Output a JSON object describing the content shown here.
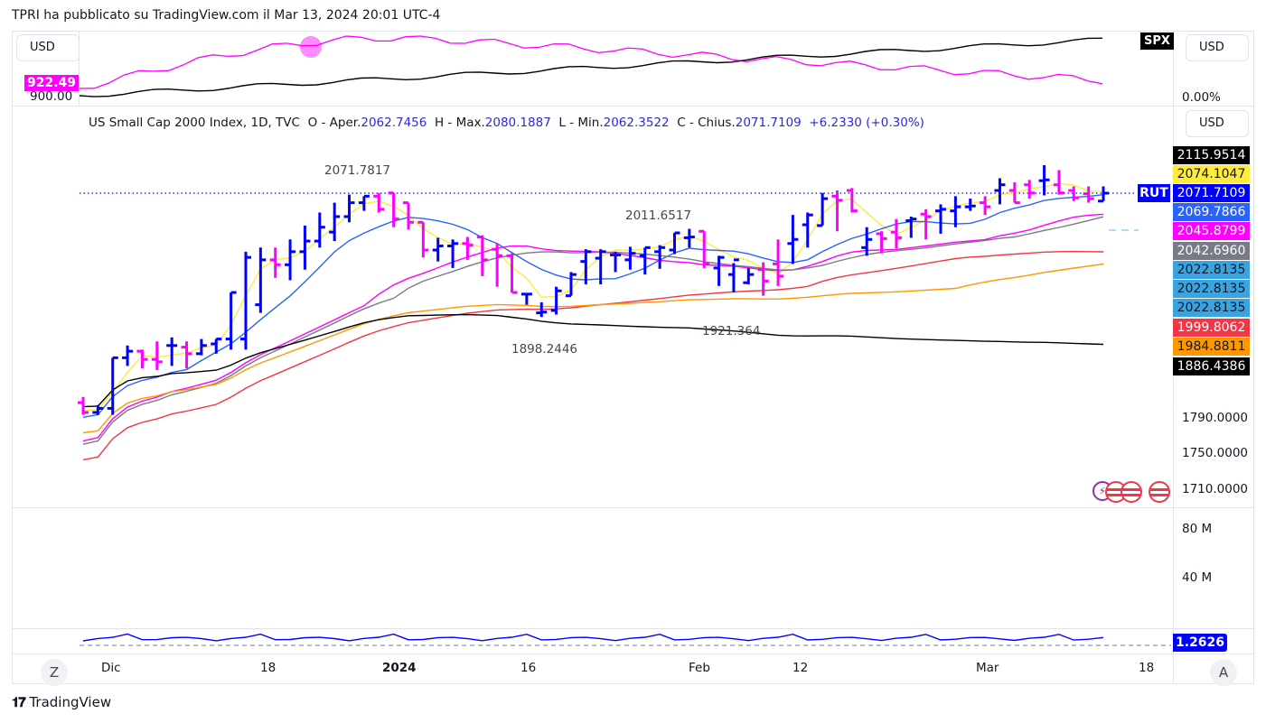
{
  "header": {
    "publish_line": "TPRI ha pubblicato su TradingView.com il Mar 13, 2024 20:01 UTC-4"
  },
  "top_pane": {
    "currency_left": "USD",
    "currency_right": "USD",
    "left_tag_value": "922.49",
    "left_axis_value": "900.00",
    "right_axis_value": "0.00%",
    "symbol_tag": "SPX"
  },
  "main_pane": {
    "currency": "USD",
    "legend": {
      "symbol": "US Small Cap 2000 Index, 1D, TVC",
      "open_label": "O - Aper.",
      "open": "2062.7456",
      "high_label": "H - Max.",
      "high": "2080.1887",
      "low_label": "L - Min.",
      "low": "2062.3522",
      "close_label": "C - Chius.",
      "close": "2071.7109",
      "change": "+6.2330 (+0.30%)"
    },
    "symbol_tag": "RUT",
    "price_tags": [
      {
        "value": "2115.9514",
        "bg": "#000000",
        "fg": "#ffffff"
      },
      {
        "value": "2074.1047",
        "bg": "#ffeb3b",
        "fg": "#131722"
      },
      {
        "value": "2071.7109",
        "bg": "#0000ff",
        "fg": "#ffffff"
      },
      {
        "value": "2069.7866",
        "bg": "#2962ff",
        "fg": "#ffffff"
      },
      {
        "value": "2045.8799",
        "bg": "#ff00ff",
        "fg": "#ffffff"
      },
      {
        "value": "2042.6960",
        "bg": "#787b86",
        "fg": "#ffffff"
      },
      {
        "value": "2022.8135",
        "bg": "#3aa4e0",
        "fg": "#131722"
      },
      {
        "value": "2022.8135",
        "bg": "#3aa4e0",
        "fg": "#131722"
      },
      {
        "value": "2022.8135",
        "bg": "#3aa4e0",
        "fg": "#131722"
      },
      {
        "value": "1999.8062",
        "bg": "#f23645",
        "fg": "#ffffff"
      },
      {
        "value": "1984.8811",
        "bg": "#ff9800",
        "fg": "#131722"
      },
      {
        "value": "1886.4386",
        "bg": "#000000",
        "fg": "#ffffff"
      }
    ],
    "axis_labels": [
      "1790.0000",
      "1750.0000",
      "1710.0000"
    ],
    "annotations": {
      "high_1": "2071.7817",
      "high_2": "2011.6517",
      "low_1": "1898.2446",
      "low_2": "1921.364"
    }
  },
  "volume_pane": {
    "axis_labels": [
      "80 M",
      "40 M"
    ]
  },
  "indicator_pane": {
    "value_tag": "1.2626"
  },
  "time_axis": {
    "labels": [
      "Dic",
      "18",
      "2024",
      "16",
      "Feb",
      "12",
      "Mar",
      "18"
    ],
    "left_button": "Z",
    "right_button": "A"
  },
  "footer": {
    "brand": "TradingView"
  },
  "colors": {
    "up_bar": "#0000ff",
    "down_bar": "#ff00ff",
    "grid": "#e0e3eb"
  },
  "chart_data": [
    {
      "type": "ohlc",
      "title": "US Small Cap 2000 Index, 1D, TVC",
      "ylim": [
        1690,
        2130
      ],
      "x": [
        "Dec 1",
        "Dec 4",
        "Dec 5",
        "Dec 6",
        "Dec 7",
        "Dec 8",
        "Dec 11",
        "Dec 12",
        "Dec 13",
        "Dec 14",
        "Dec 15",
        "Dec 18",
        "Dec 19",
        "Dec 20",
        "Dec 21",
        "Dec 22",
        "Dec 26",
        "Dec 27",
        "Dec 28",
        "Dec 29",
        "Jan 2",
        "Jan 3",
        "Jan 4",
        "Jan 5",
        "Jan 8",
        "Jan 9",
        "Jan 10",
        "Jan 11",
        "Jan 12",
        "Jan 16",
        "Jan 17",
        "Jan 18",
        "Jan 19",
        "Jan 22",
        "Jan 23",
        "Jan 24",
        "Jan 25",
        "Jan 26",
        "Jan 29",
        "Jan 30",
        "Jan 31",
        "Feb 1",
        "Feb 2",
        "Feb 5",
        "Feb 6",
        "Feb 7",
        "Feb 8",
        "Feb 9",
        "Feb 12",
        "Feb 13",
        "Feb 14",
        "Feb 15",
        "Feb 16",
        "Feb 20",
        "Feb 21",
        "Feb 22",
        "Feb 23",
        "Feb 26",
        "Feb 27",
        "Feb 28",
        "Feb 29",
        "Mar 1",
        "Mar 4",
        "Mar 5",
        "Mar 6",
        "Mar 7",
        "Mar 8",
        "Mar 11",
        "Mar 12",
        "Mar 13"
      ],
      "open": [
        1815,
        1803,
        1808,
        1870,
        1878,
        1868,
        1885,
        1883,
        1875,
        1887,
        1893,
        1893,
        1935,
        1990,
        1984,
        2000,
        2013,
        2024,
        2043,
        2060,
        2068,
        2072,
        2060,
        2036,
        2002,
        2007,
        2010,
        2018,
        2003,
        1995,
        1948,
        1925,
        1928,
        1946,
        1988,
        1992,
        1996,
        1990,
        1995,
        2000,
        2002,
        2017,
        2025,
        1980,
        1972,
        1962,
        1978,
        1985,
        2010,
        2033,
        2032,
        2068,
        2075,
        2005,
        2022,
        2024,
        2038,
        2046,
        2050,
        2050,
        2055,
        2060,
        2075,
        2075,
        2082,
        2087,
        2082,
        2075,
        2071,
        2062
      ],
      "high": [
        1822,
        1812,
        1870,
        1885,
        1880,
        1890,
        1895,
        1890,
        1893,
        1893,
        1950,
        2000,
        2005,
        2005,
        2015,
        2032,
        2048,
        2060,
        2070,
        2068,
        2072,
        2072,
        2060,
        2036,
        2017,
        2015,
        2018,
        2020,
        2010,
        1998,
        1948,
        1938,
        1957,
        1975,
        2003,
        2003,
        2000,
        2006,
        2005,
        2008,
        2023,
        2028,
        2025,
        1995,
        1986,
        1980,
        1987,
        2015,
        2045,
        2048,
        2072,
        2075,
        2078,
        2030,
        2025,
        2040,
        2043,
        2052,
        2058,
        2068,
        2065,
        2068,
        2090,
        2085,
        2088,
        2106,
        2100,
        2080,
        2080,
        2080
      ],
      "low": [
        1800,
        1800,
        1800,
        1860,
        1857,
        1855,
        1860,
        1857,
        1873,
        1875,
        1880,
        1880,
        1925,
        1968,
        1965,
        1978,
        2005,
        2013,
        2036,
        2050,
        2048,
        2030,
        2027,
        1993,
        1988,
        1980,
        1990,
        1970,
        1957,
        1950,
        1935,
        1920,
        1923,
        1946,
        1960,
        1960,
        1975,
        1978,
        1972,
        1979,
        1997,
        2005,
        1980,
        1958,
        1950,
        1960,
        1946,
        1958,
        1985,
        2005,
        2032,
        2025,
        2048,
        1995,
        1998,
        2004,
        2017,
        2015,
        2022,
        2030,
        2050,
        2045,
        2058,
        2060,
        2065,
        2069,
        2070,
        2062,
        2060,
        2062
      ],
      "close": [
        1803,
        1808,
        1870,
        1878,
        1868,
        1865,
        1885,
        1875,
        1885,
        1893,
        1950,
        1993,
        1990,
        1984,
        2000,
        2013,
        2030,
        2043,
        2060,
        2068,
        2052,
        2040,
        2036,
        2002,
        2007,
        2010,
        2008,
        1990,
        1995,
        1950,
        1948,
        1926,
        1952,
        1972,
        2000,
        2000,
        1996,
        1998,
        2005,
        2005,
        2023,
        2018,
        1985,
        1993,
        1990,
        1972,
        1964,
        1970,
        2015,
        2045,
        2065,
        2063,
        2050,
        2015,
        2016,
        2017,
        2040,
        2043,
        2052,
        2055,
        2056,
        2055,
        2082,
        2060,
        2072,
        2088,
        2072,
        2066,
        2065,
        2071.7109
      ],
      "ma_series": [
        {
          "name": "MA yellow",
          "color": "#ffeb3b",
          "last": 2074.1047
        },
        {
          "name": "MA blue",
          "color": "#2962ff",
          "last": 2069.7866
        },
        {
          "name": "MA magenta",
          "color": "#ff00ff",
          "last": 2045.8799
        },
        {
          "name": "MA gray",
          "color": "#787b86",
          "last": 2042.696
        },
        {
          "name": "MA red",
          "color": "#f23645",
          "last": 1999.8062
        },
        {
          "name": "MA orange",
          "color": "#ff9800",
          "last": 1984.8811
        },
        {
          "name": "MA black",
          "color": "#000000",
          "last": 1886.4386
        }
      ],
      "annotations": [
        {
          "label": "2071.7817",
          "type": "high"
        },
        {
          "label": "2011.6517",
          "type": "high"
        },
        {
          "label": "1898.2446",
          "type": "low"
        },
        {
          "label": "1921.364",
          "type": "low"
        }
      ],
      "last_price": 2071.7109
    }
  ]
}
